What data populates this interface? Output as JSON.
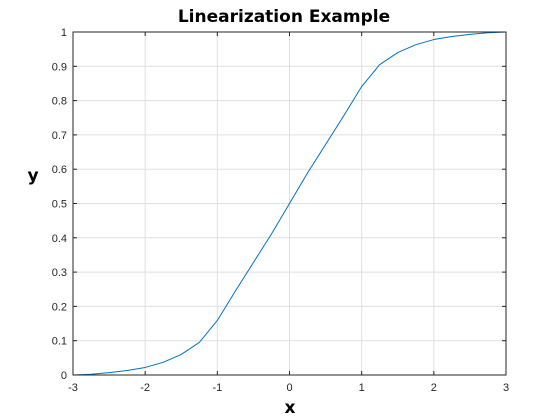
{
  "chart_data": {
    "type": "line",
    "title": "Linearization Example",
    "xlabel": "x",
    "ylabel": "y",
    "xlim": [
      -3,
      3
    ],
    "ylim": [
      0,
      1
    ],
    "xticks": [
      -3,
      -2,
      -1,
      0,
      1,
      2,
      3
    ],
    "yticks": [
      0,
      0.1,
      0.2,
      0.3,
      0.4,
      0.5,
      0.6,
      0.7,
      0.8,
      0.9,
      1
    ],
    "xtick_labels": [
      "-3",
      "-2",
      "-1",
      "0",
      "1",
      "2",
      "3"
    ],
    "ytick_labels": [
      "0",
      "0.1",
      "0.2",
      "0.3",
      "0.4",
      "0.5",
      "0.6",
      "0.7",
      "0.8",
      "0.9",
      "1"
    ],
    "grid": true,
    "series": [
      {
        "color": "#0072bd",
        "x": [
          -3,
          -2.75,
          -2.5,
          -2.25,
          -2,
          -1.75,
          -1.5,
          -1.25,
          -1,
          -0.75,
          -0.5,
          -0.25,
          0,
          0.25,
          0.5,
          0.75,
          1,
          1.25,
          1.5,
          1.75,
          2,
          2.25,
          2.5,
          2.75,
          3
        ],
        "y": [
          0,
          0.002,
          0.007,
          0.013,
          0.022,
          0.037,
          0.06,
          0.095,
          0.159,
          0.245,
          0.328,
          0.411,
          0.5,
          0.589,
          0.672,
          0.755,
          0.841,
          0.905,
          0.94,
          0.963,
          0.978,
          0.987,
          0.993,
          0.998,
          1
        ]
      }
    ]
  }
}
